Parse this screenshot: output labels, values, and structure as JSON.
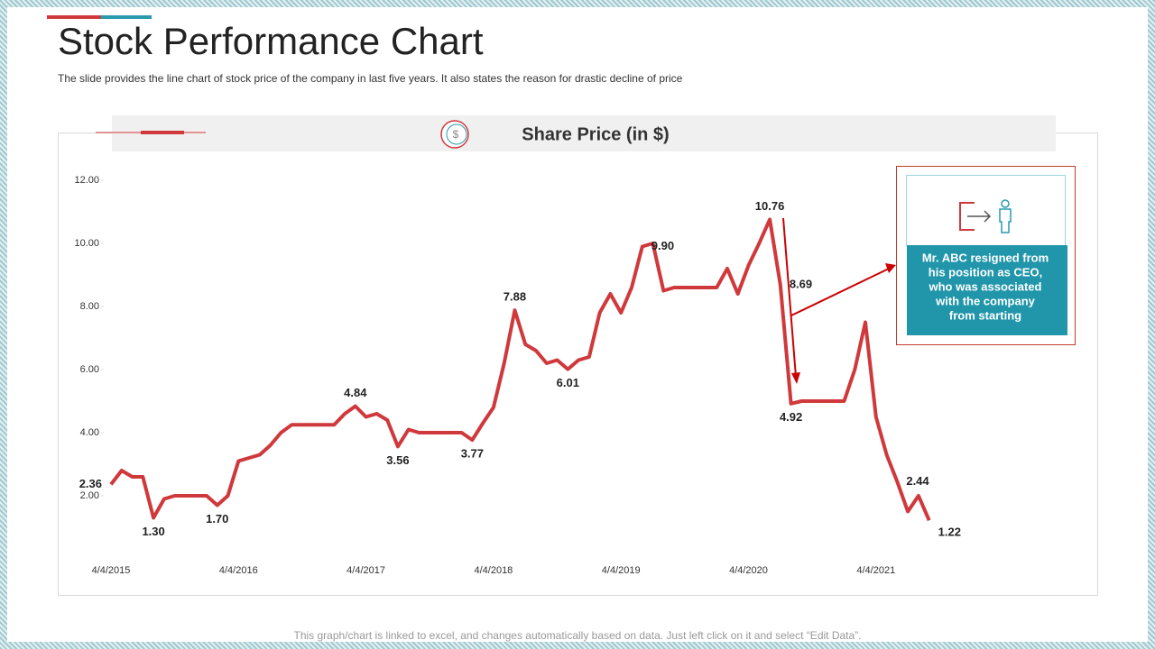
{
  "title": "Stock Performance Chart",
  "subtitle": "The slide provides  the line chart of stock price  of the company  in last five  years.  It also states the reason for  drastic decline  of price",
  "footer": "This graph/chart is linked to excel, and changes automatically based on data. Just left click on it and select “Edit Data”.",
  "callout": {
    "lines": [
      "Mr. ABC resigned from",
      "his position as CEO,",
      "who was associated",
      "with the company",
      "from starting"
    ]
  },
  "chart_data": {
    "type": "line",
    "title": "Share Price (in $)",
    "categories": [
      "4/4/2015",
      null,
      null,
      null,
      null,
      null,
      null,
      null,
      null,
      null,
      null,
      null,
      "4/4/2016",
      null,
      null,
      null,
      null,
      null,
      null,
      null,
      null,
      null,
      null,
      null,
      "4/4/2017",
      null,
      null,
      null,
      null,
      null,
      null,
      null,
      null,
      null,
      null,
      null,
      "4/4/2018",
      null,
      null,
      null,
      null,
      null,
      null,
      null,
      null,
      null,
      null,
      null,
      "4/4/2019",
      null,
      null,
      null,
      null,
      null,
      null,
      null,
      null,
      null,
      null,
      null,
      "4/4/2020",
      null,
      null,
      null,
      null,
      null,
      null,
      null,
      null,
      null,
      null,
      null,
      "4/4/2021",
      null,
      null,
      null,
      null,
      null
    ],
    "values": [
      2.36,
      2.8,
      2.6,
      2.6,
      1.3,
      1.9,
      2.0,
      2.0,
      2.0,
      2.0,
      1.7,
      2.0,
      3.1,
      3.2,
      3.3,
      3.6,
      4.0,
      4.25,
      4.25,
      4.25,
      4.25,
      4.25,
      4.6,
      4.84,
      4.5,
      4.6,
      4.4,
      3.56,
      4.1,
      4.0,
      4.0,
      4.0,
      4.0,
      4.0,
      3.77,
      4.3,
      4.8,
      6.2,
      7.88,
      6.8,
      6.6,
      6.2,
      6.3,
      6.01,
      6.3,
      6.4,
      7.8,
      8.4,
      7.8,
      8.6,
      9.9,
      10.0,
      8.5,
      8.6,
      8.6,
      8.6,
      8.6,
      8.6,
      9.2,
      8.4,
      9.3,
      10.0,
      10.76,
      8.69,
      4.92,
      5.0,
      5.0,
      5.0,
      5.0,
      5.0,
      6.0,
      7.5,
      4.5,
      3.3,
      2.44,
      1.5,
      2.0,
      1.22
    ],
    "value_labels": [
      "2.36",
      null,
      null,
      null,
      "1.30",
      null,
      null,
      null,
      null,
      null,
      "1.70",
      null,
      null,
      null,
      null,
      null,
      null,
      null,
      null,
      null,
      null,
      null,
      null,
      "4.84",
      null,
      null,
      null,
      "3.56",
      null,
      null,
      null,
      null,
      null,
      null,
      "3.77",
      null,
      null,
      null,
      "7.88",
      null,
      null,
      null,
      null,
      "6.01",
      null,
      null,
      null,
      null,
      null,
      null,
      "9.90",
      null,
      null,
      null,
      null,
      null,
      null,
      null,
      null,
      null,
      null,
      null,
      "10.76",
      "8.69",
      "4.92",
      null,
      null,
      null,
      null,
      null,
      null,
      null,
      null,
      null,
      "2.44",
      null,
      null,
      "1.22"
    ],
    "color": "#d0393c",
    "ylim": [
      0,
      12
    ],
    "yticks": [
      {
        "value": 2,
        "label": "2.00"
      },
      {
        "value": 4,
        "label": "4.00"
      },
      {
        "value": 6,
        "label": "6.00"
      },
      {
        "value": 8,
        "label": "8.00"
      },
      {
        "value": 10,
        "label": "10.00"
      },
      {
        "value": 12,
        "label": "12.00"
      }
    ]
  }
}
